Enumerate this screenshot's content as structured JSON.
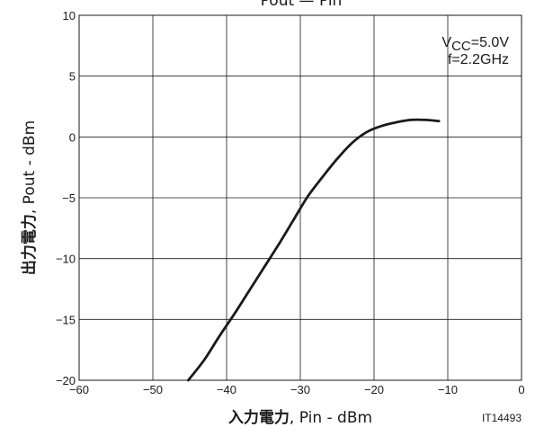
{
  "chart_data": {
    "type": "line",
    "title": "Pout — Pin",
    "xlabel_jp": "入力電力",
    "xlabel_en": ", Pin - dBm",
    "ylabel_jp": "出力電力",
    "ylabel_en": ", Pout - dBm",
    "xlim": [
      -60,
      0
    ],
    "ylim": [
      -20,
      10
    ],
    "xticks": [
      -60,
      -50,
      -40,
      -30,
      -20,
      -10,
      0
    ],
    "yticks": [
      -20,
      -15,
      -10,
      -5,
      0,
      5,
      10
    ],
    "xtick_labels": [
      "−60",
      "−50",
      "−40",
      "−30",
      "−20",
      "−10",
      "0"
    ],
    "ytick_labels": [
      "−20",
      "−15",
      "−10",
      "−5",
      "0",
      "5",
      "10"
    ],
    "grid": true,
    "annotations": {
      "vcc_main": "V",
      "vcc_sub": "CC",
      "vcc_value": "=5.0V",
      "freq": "f=2.2GHz"
    },
    "footer_code": "IT14493",
    "colors": {
      "line": "#1a1a1a",
      "grid": "#1a1a1a",
      "background": "#ffffff"
    },
    "series": [
      {
        "x": [
          -45.2,
          -43,
          -41,
          -39,
          -37,
          -35,
          -33,
          -31,
          -29,
          -27,
          -25,
          -23,
          -21,
          -19,
          -17,
          -15,
          -13,
          -11.2
        ],
        "y": [
          -20,
          -18.3,
          -16.4,
          -14.6,
          -12.7,
          -10.8,
          -8.9,
          -6.9,
          -4.9,
          -3.3,
          -1.8,
          -0.5,
          0.4,
          0.9,
          1.2,
          1.4,
          1.4,
          1.3
        ]
      }
    ]
  }
}
